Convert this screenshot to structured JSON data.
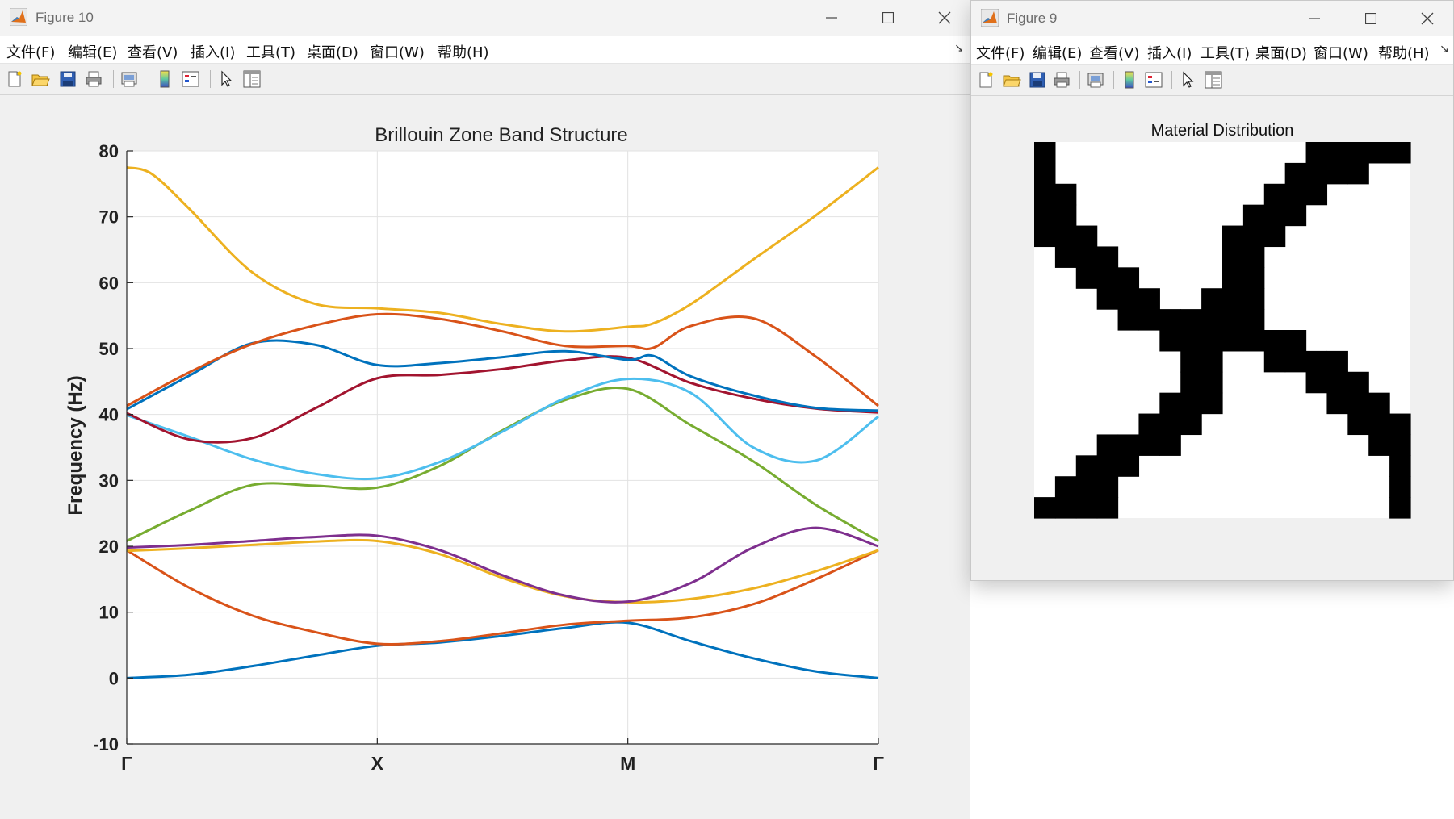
{
  "window_main": {
    "title": "Figure 10",
    "menu": [
      "文件(F)",
      "编辑(E)",
      "查看(V)",
      "插入(I)",
      "工具(T)",
      "桌面(D)",
      "窗口(W)",
      "帮助(H)"
    ]
  },
  "window_second": {
    "title": "Figure 9",
    "menu": [
      "文件(F)",
      "编辑(E)",
      "查看(V)",
      "插入(I)",
      "工具(T)",
      "桌面(D)",
      "窗口(W)",
      "帮助(H)"
    ]
  },
  "toolbar_icons": [
    "new-figure-icon",
    "open-file-icon",
    "save-icon",
    "print-icon",
    "print-preview-icon",
    "colorbar-icon",
    "legend-icon",
    "pointer-icon",
    "property-inspector-icon"
  ],
  "chart_data": [
    {
      "type": "line",
      "title": "Brillouin Zone Band Structure",
      "xlabel": "",
      "ylabel": "Frequency (Hz)",
      "x_ticks": [
        "Γ",
        "X",
        "M",
        "Γ"
      ],
      "xlim": [
        0,
        3
      ],
      "ylim": [
        -10,
        80
      ],
      "y_ticks": [
        -10,
        0,
        10,
        20,
        30,
        40,
        50,
        60,
        70,
        80
      ],
      "grid": true,
      "series": [
        {
          "color": "#0072BD",
          "x": [
            0,
            0.25,
            0.5,
            0.75,
            1.0,
            1.25,
            1.5,
            1.75,
            2.0,
            2.25,
            2.5,
            2.75,
            3.0
          ],
          "y": [
            0,
            0.5,
            1.8,
            3.4,
            4.9,
            5.4,
            6.4,
            7.6,
            8.4,
            5.6,
            3.0,
            1.0,
            0
          ]
        },
        {
          "color": "#D95319",
          "x": [
            0,
            0.25,
            0.5,
            0.75,
            1.0,
            1.25,
            1.5,
            1.75,
            2.0,
            2.25,
            2.5,
            2.75,
            3.0
          ],
          "y": [
            19.4,
            13.7,
            9.5,
            7.0,
            5.2,
            5.6,
            6.8,
            8.1,
            8.7,
            9.2,
            11.2,
            15.0,
            19.4
          ]
        },
        {
          "color": "#EDB120",
          "x": [
            0,
            0.25,
            0.5,
            0.75,
            1.0,
            1.25,
            1.5,
            1.75,
            2.0,
            2.25,
            2.5,
            2.75,
            3.0
          ],
          "y": [
            19.3,
            19.7,
            20.2,
            20.7,
            20.8,
            18.8,
            15.2,
            12.4,
            11.5,
            12.0,
            13.6,
            16.2,
            19.4
          ]
        },
        {
          "color": "#7E2F8E",
          "x": [
            0,
            0.25,
            0.5,
            0.75,
            1.0,
            1.25,
            1.5,
            1.75,
            2.0,
            2.25,
            2.5,
            2.75,
            3.0
          ],
          "y": [
            19.8,
            20.2,
            20.8,
            21.4,
            21.6,
            19.4,
            15.6,
            12.5,
            11.6,
            14.4,
            19.8,
            22.8,
            20.0
          ]
        },
        {
          "color": "#77AC30",
          "x": [
            0,
            0.25,
            0.5,
            0.75,
            1.0,
            1.25,
            1.5,
            1.75,
            2.0,
            2.25,
            2.5,
            2.75,
            3.0
          ],
          "y": [
            20.8,
            25.4,
            29.3,
            29.2,
            28.9,
            32.2,
            37.6,
            42.2,
            43.9,
            38.4,
            32.9,
            26.3,
            20.8
          ]
        },
        {
          "color": "#4DBEEE",
          "x": [
            0,
            0.25,
            0.5,
            0.75,
            1.0,
            1.25,
            1.5,
            1.75,
            2.0,
            2.25,
            2.5,
            2.75,
            3.0
          ],
          "y": [
            39.9,
            36.6,
            33.2,
            31.0,
            30.3,
            32.8,
            37.4,
            42.5,
            45.4,
            43.3,
            35.0,
            33.0,
            39.7
          ]
        },
        {
          "color": "#A2142F",
          "x": [
            0,
            0.25,
            0.5,
            0.75,
            1.0,
            1.25,
            1.5,
            1.75,
            2.0,
            2.25,
            2.5,
            2.75,
            3.0
          ],
          "y": [
            40.2,
            36.2,
            36.4,
            40.9,
            45.5,
            46.0,
            46.9,
            48.2,
            48.6,
            44.8,
            42.4,
            40.9,
            40.3
          ]
        },
        {
          "color": "#0072BD",
          "x": [
            0,
            0.25,
            0.5,
            0.75,
            1.0,
            1.25,
            1.5,
            1.75,
            2.0,
            2.1,
            2.25,
            2.5,
            2.75,
            3.0
          ],
          "y": [
            40.8,
            45.9,
            50.8,
            50.6,
            47.5,
            47.8,
            48.7,
            49.6,
            48.3,
            48.9,
            45.8,
            42.9,
            41.0,
            40.6
          ]
        },
        {
          "color": "#D95319",
          "x": [
            0,
            0.25,
            0.5,
            0.75,
            1.0,
            1.25,
            1.5,
            1.75,
            2.0,
            2.1,
            2.25,
            2.5,
            2.75,
            3.0
          ],
          "y": [
            41.3,
            46.4,
            50.7,
            53.5,
            55.2,
            54.5,
            52.6,
            50.4,
            50.4,
            50.1,
            53.4,
            54.6,
            48.8,
            41.3
          ]
        },
        {
          "color": "#EDB120",
          "x": [
            0,
            0.1,
            0.25,
            0.5,
            0.75,
            1.0,
            1.25,
            1.5,
            1.75,
            2.0,
            2.1,
            2.25,
            2.5,
            2.75,
            3.0
          ],
          "y": [
            77.5,
            76.5,
            71.2,
            61.6,
            56.8,
            56.1,
            55.4,
            53.7,
            52.6,
            53.3,
            53.8,
            56.7,
            63.5,
            70.2,
            77.5
          ]
        }
      ]
    },
    {
      "type": "heatmap",
      "title": "Material Distribution",
      "rows": 18,
      "cols": 18,
      "cells": [
        "100000000000011111",
        "100000000000111100",
        "110000000001110000",
        "110000000011100000",
        "111000000111000000",
        "011100000110000000",
        "001110000110000000",
        "000111001110000000",
        "000011111110000000",
        "000000111111100000",
        "000000011001111000",
        "000000011000011100",
        "000000111000001110",
        "000001110000000111",
        "000111100000000011",
        "001110000000000001",
        "011100000000000001",
        "111100000000000001"
      ],
      "colors": {
        "solid": "#000000",
        "void": "#ffffff"
      }
    }
  ]
}
